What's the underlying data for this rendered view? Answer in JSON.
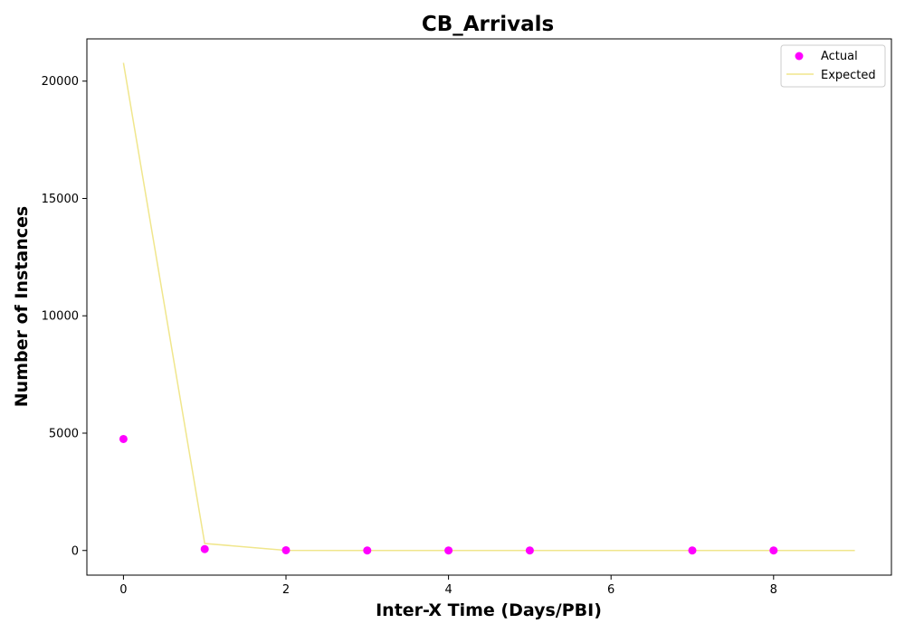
{
  "chart_data": {
    "type": "scatter",
    "title": "CB_Arrivals",
    "xlabel": "Inter-X Time (Days/PBI)",
    "ylabel": "Number of Instances",
    "xlim": [
      -0.45,
      9.45
    ],
    "ylim": [
      -1050,
      21800
    ],
    "xticks": [
      0,
      2,
      4,
      6,
      8
    ],
    "yticks": [
      0,
      5000,
      10000,
      15000,
      20000
    ],
    "grid": false,
    "legend_position": "top-right",
    "series": [
      {
        "name": "Actual",
        "kind": "scatter",
        "color": "#ff00ff",
        "x": [
          0,
          1,
          2,
          3,
          4,
          5,
          7,
          8
        ],
        "y": [
          4750,
          60,
          10,
          1,
          1,
          1,
          1,
          1
        ]
      },
      {
        "name": "Expected",
        "kind": "line",
        "color": "#f0e68c",
        "x": [
          0,
          1,
          2,
          3,
          4,
          5,
          6,
          7,
          8,
          9
        ],
        "y": [
          20780,
          300,
          5,
          0,
          0,
          0,
          0,
          0,
          0,
          0
        ]
      }
    ]
  }
}
